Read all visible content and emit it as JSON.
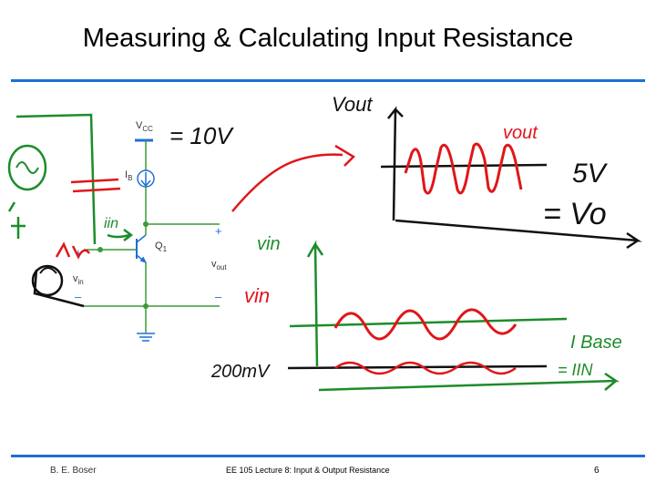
{
  "slide": {
    "title": "Measuring & Calculating Input Resistance",
    "footer": {
      "author": "B. E. Boser",
      "course": "EE 105 Lecture 8: Input & Output Resistance",
      "page": "6"
    }
  },
  "circuit": {
    "vcc": "V",
    "vcc_sub": "CC",
    "ib": "I",
    "ib_sub": "B",
    "q1": "Q",
    "q1_sub": "1",
    "vin": "v",
    "vin_sub": "in",
    "vout": "v",
    "vout_sub": "out",
    "plus": "+",
    "minus": "–"
  },
  "annotations": {
    "vcc_value": "= 10V",
    "vout_axis": "Vout",
    "vout_wave": "vout",
    "five_v": "5V",
    "equals_vo": "= Vo",
    "vin_axis": "vin",
    "vin_wave": "vin",
    "i_in": "iin",
    "i_base": "I Base",
    "equals_iin": "= IIN",
    "mv200": "200mV"
  },
  "colors": {
    "accent_rule": "#1f6fd6",
    "circuit_green": "#3a9a3a",
    "circuit_blue": "#1f6fd6",
    "ink_red": "#e0161a",
    "ink_green": "#1d8c2a",
    "ink_black": "#111111"
  }
}
